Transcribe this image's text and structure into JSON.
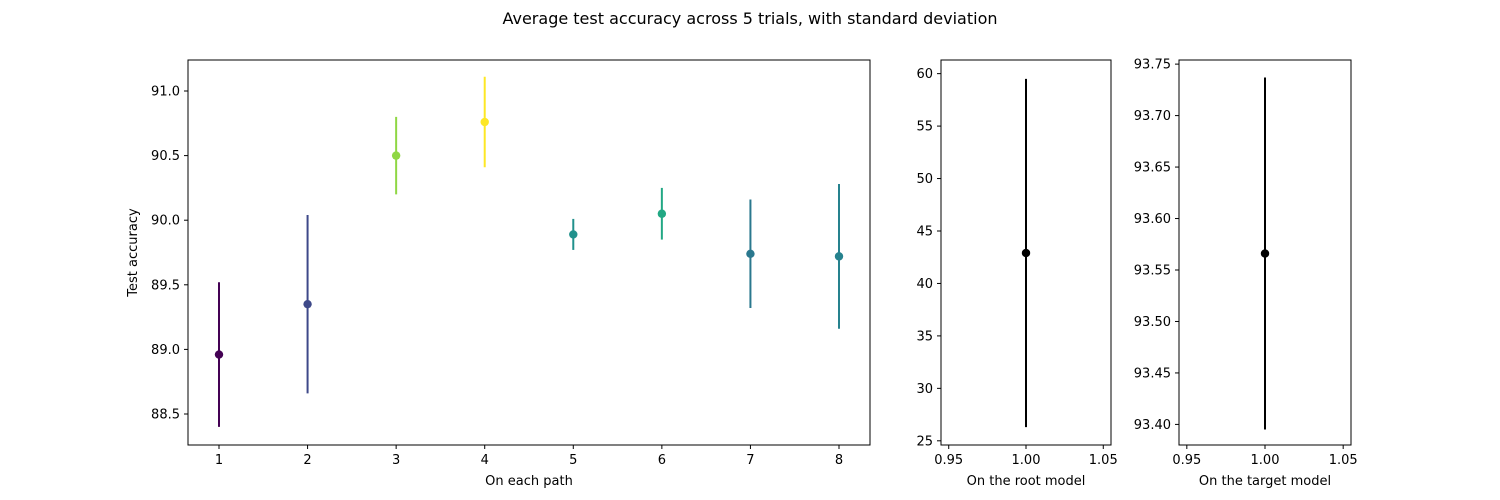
{
  "figure": {
    "title": "Average test accuracy across 5 trials, with standard deviation"
  },
  "chart_data": [
    {
      "type": "scatter",
      "title": "",
      "xlabel": "On each path",
      "ylabel": "Test accuracy",
      "xlim": [
        0.65,
        8.35
      ],
      "ylim": [
        88.26,
        91.24
      ],
      "xticks": [
        "1",
        "2",
        "3",
        "4",
        "5",
        "6",
        "7",
        "8"
      ],
      "yticks": [
        "88.5",
        "89.0",
        "89.5",
        "90.0",
        "90.5",
        "91.0"
      ],
      "grid": false,
      "points": [
        {
          "x": 1,
          "y": 88.96,
          "err": 0.56,
          "color": "#440154"
        },
        {
          "x": 2,
          "y": 89.35,
          "err": 0.69,
          "color": "#3e4989"
        },
        {
          "x": 3,
          "y": 90.5,
          "err": 0.3,
          "color": "#8fd744"
        },
        {
          "x": 4,
          "y": 90.76,
          "err": 0.35,
          "color": "#fde725"
        },
        {
          "x": 5,
          "y": 89.89,
          "err": 0.12,
          "color": "#21918c"
        },
        {
          "x": 6,
          "y": 90.05,
          "err": 0.2,
          "color": "#22a884"
        },
        {
          "x": 7,
          "y": 89.74,
          "err": 0.42,
          "color": "#2a788e"
        },
        {
          "x": 8,
          "y": 89.72,
          "err": 0.56,
          "color": "#26828e"
        }
      ]
    },
    {
      "type": "scatter",
      "title": "",
      "xlabel": "On the root model",
      "ylabel": "",
      "xlim": [
        0.945,
        1.055
      ],
      "ylim": [
        24.6,
        61.3
      ],
      "xticks": [
        "0.95",
        "1.00",
        "1.05"
      ],
      "yticks": [
        "25",
        "30",
        "35",
        "40",
        "45",
        "50",
        "55",
        "60"
      ],
      "grid": false,
      "points": [
        {
          "x": 1.0,
          "y": 42.9,
          "err": 16.6,
          "color": "#000000"
        }
      ]
    },
    {
      "type": "scatter",
      "title": "",
      "xlabel": "On the target model",
      "ylabel": "",
      "xlim": [
        0.945,
        1.055
      ],
      "ylim": [
        93.38,
        93.754
      ],
      "xticks": [
        "0.95",
        "1.00",
        "1.05"
      ],
      "yticks": [
        "93.40",
        "93.45",
        "93.50",
        "93.55",
        "93.60",
        "93.65",
        "93.70",
        "93.75"
      ],
      "grid": false,
      "points": [
        {
          "x": 1.0,
          "y": 93.566,
          "err": 0.171,
          "color": "#000000"
        }
      ]
    }
  ]
}
